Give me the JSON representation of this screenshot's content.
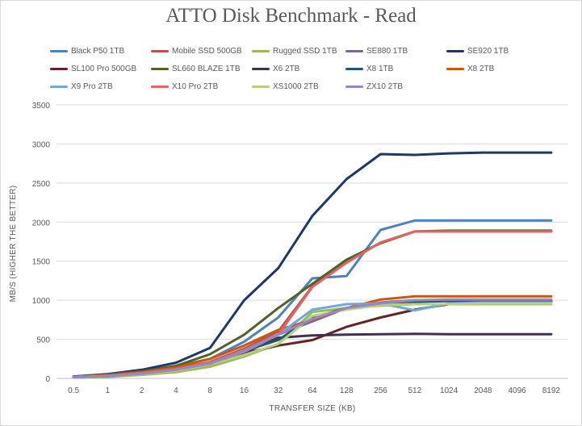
{
  "chart_data": {
    "type": "line",
    "title": "ATTO Disk Benchmark - Read",
    "xlabel": "TRANSFER SIZE (KB)",
    "ylabel": "MB/S (HIGHER THE BETTER)",
    "ylim": [
      0,
      3500
    ],
    "yticks": [
      0,
      500,
      1000,
      1500,
      2000,
      2500,
      3000,
      3500
    ],
    "grid": true,
    "legend_position": "top",
    "categories": [
      "0.5",
      "1",
      "2",
      "4",
      "8",
      "16",
      "32",
      "64",
      "128",
      "256",
      "512",
      "1024",
      "2048",
      "4096",
      "8192"
    ],
    "series": [
      {
        "name": "Black P50 1TB",
        "color": "#4f81bd",
        "values": [
          25,
          45,
          90,
          155,
          250,
          470,
          780,
          1280,
          1310,
          1900,
          2020,
          2020,
          2020,
          2020,
          2020
        ]
      },
      {
        "name": "Mobile SSD 500GB",
        "color": "#c0504d",
        "values": [
          20,
          35,
          70,
          120,
          210,
          380,
          600,
          1180,
          1490,
          1740,
          1880,
          1880,
          1880,
          1880,
          1880
        ]
      },
      {
        "name": "Rugged SSD 1TB",
        "color": "#9bbb59",
        "values": [
          10,
          20,
          45,
          80,
          150,
          280,
          440,
          850,
          900,
          930,
          950,
          950,
          950,
          950,
          950
        ]
      },
      {
        "name": "SE880 1TB",
        "color": "#8064a2",
        "values": [
          15,
          30,
          60,
          110,
          190,
          340,
          560,
          730,
          900,
          970,
          1000,
          1000,
          1000,
          1000,
          1000
        ]
      },
      {
        "name": "SE920 1TB",
        "color": "#1f3864",
        "values": [
          25,
          55,
          110,
          200,
          390,
          1000,
          1410,
          2080,
          2550,
          2870,
          2860,
          2880,
          2890,
          2890,
          2890
        ]
      },
      {
        "name": "SL100 Pro 500GB",
        "color": "#632523",
        "values": [
          15,
          30,
          60,
          110,
          180,
          320,
          420,
          490,
          660,
          780,
          880,
          950,
          980,
          980,
          980
        ]
      },
      {
        "name": "SL660 BLAZE 1TB",
        "color": "#4f6228",
        "values": [
          20,
          45,
          90,
          160,
          310,
          560,
          900,
          1210,
          1520,
          1730,
          1880,
          1890,
          1890,
          1890,
          1890
        ]
      },
      {
        "name": "X6 2TB",
        "color": "#403151",
        "values": [
          15,
          30,
          60,
          110,
          190,
          330,
          520,
          550,
          560,
          565,
          570,
          565,
          565,
          565,
          565
        ]
      },
      {
        "name": "X8 1TB",
        "color": "#215968",
        "values": [
          15,
          30,
          60,
          115,
          200,
          350,
          490,
          780,
          900,
          950,
          980,
          990,
          990,
          990,
          990
        ]
      },
      {
        "name": "X8 2TB",
        "color": "#c55a11",
        "values": [
          20,
          40,
          80,
          140,
          250,
          420,
          620,
          750,
          900,
          1010,
          1050,
          1050,
          1050,
          1050,
          1050
        ]
      },
      {
        "name": "X9 Pro 2TB",
        "color": "#6fa8dc",
        "values": [
          15,
          30,
          60,
          110,
          200,
          360,
          560,
          880,
          950,
          960,
          870,
          960,
          970,
          970,
          970
        ]
      },
      {
        "name": "X10 Pro 2TB",
        "color": "#e06666",
        "values": [
          20,
          35,
          70,
          120,
          200,
          350,
          560,
          1170,
          1480,
          1740,
          1880,
          1880,
          1880,
          1880,
          1880
        ]
      },
      {
        "name": "XS1000 2TB",
        "color": "#b4d17b",
        "values": [
          15,
          30,
          55,
          100,
          180,
          300,
          440,
          800,
          880,
          940,
          950,
          950,
          960,
          960,
          960
        ]
      },
      {
        "name": "ZX10 2TB",
        "color": "#9a86c0",
        "values": [
          15,
          30,
          60,
          110,
          190,
          340,
          560,
          760,
          900,
          960,
          1000,
          1010,
          1010,
          1010,
          1010
        ]
      }
    ]
  }
}
